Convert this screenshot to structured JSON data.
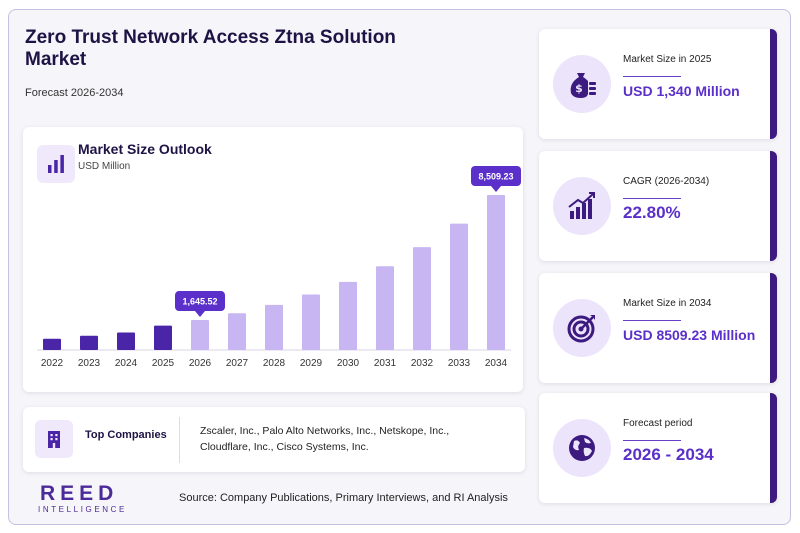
{
  "header": {
    "title": "Zero Trust Network Access Ztna Solution Market",
    "subtitle": "Forecast 2026-2034"
  },
  "chart_data": {
    "type": "bar",
    "title": "Market Size Outlook",
    "ylabel": "USD Million",
    "categories": [
      "2022",
      "2023",
      "2024",
      "2025",
      "2026",
      "2027",
      "2028",
      "2029",
      "2030",
      "2031",
      "2032",
      "2033",
      "2034"
    ],
    "values": [
      620,
      780,
      960,
      1340,
      1645.52,
      2020,
      2480,
      3050,
      3740,
      4600,
      5650,
      6940,
      8509.23
    ],
    "ylim": [
      0,
      8509.23
    ],
    "annotations": [
      {
        "category": "2026",
        "label": "1,645.52"
      },
      {
        "category": "2034",
        "label": "8,509.23"
      }
    ],
    "colors": {
      "historical": "#4b25a8",
      "forecast": "#c7b6f2",
      "callout": "#5b2fc9"
    }
  },
  "companies": {
    "label": "Top Companies",
    "list": "Zscaler, Inc., Palo Alto Networks, Inc., Netskope, Inc., Cloudflare, Inc., Cisco Systems, Inc.",
    "icon": "building-icon"
  },
  "stats": [
    {
      "label": "Market Size in 2025",
      "value": "USD 1,340 Million",
      "icon": "money-bag-icon"
    },
    {
      "label": "CAGR (2026-2034)",
      "value": "22.80%",
      "icon": "growth-chart-icon"
    },
    {
      "label": "Market Size in 2034",
      "value": "USD 8509.23 Million",
      "icon": "target-icon"
    },
    {
      "label": "Forecast period",
      "value": "2026 - 2034",
      "icon": "globe-icon"
    }
  ],
  "footer": {
    "logo_main": "REED",
    "logo_sub": "INTELLIGENCE",
    "source": "Source: Company Publications, Primary Interviews, and RI Analysis"
  }
}
